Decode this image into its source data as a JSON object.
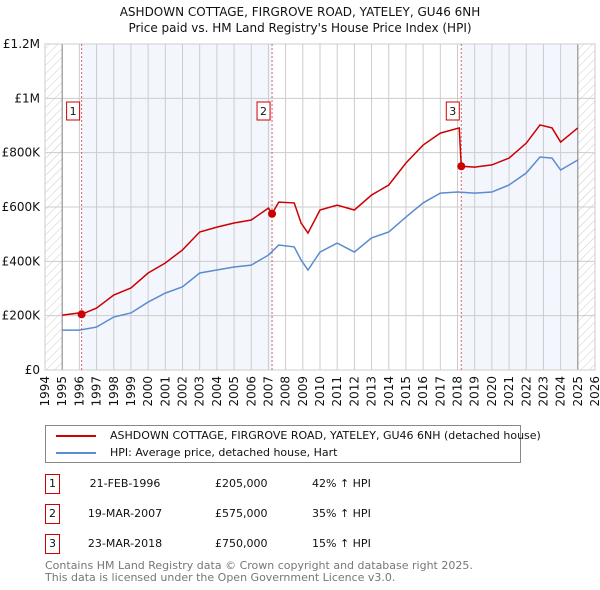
{
  "chart_data": {
    "type": "line",
    "title": "ASHDOWN COTTAGE, FIRGROVE ROAD, YATELEY, GU46 6NH",
    "subtitle": "Price paid vs. HM Land Registry's House Price Index (HPI)",
    "xlim": [
      1994,
      2026
    ],
    "ylim": [
      0,
      1200000
    ],
    "x_ticks": [
      "1994",
      "1995",
      "1996",
      "1997",
      "1998",
      "1999",
      "2000",
      "2001",
      "2002",
      "2003",
      "2004",
      "2005",
      "2006",
      "2007",
      "2008",
      "2009",
      "2010",
      "2011",
      "2012",
      "2013",
      "2014",
      "2015",
      "2016",
      "2017",
      "2018",
      "2019",
      "2020",
      "2021",
      "2022",
      "2023",
      "2024",
      "2025",
      "2026"
    ],
    "y_ticks": [
      {
        "v": 0,
        "label": "£0"
      },
      {
        "v": 200000,
        "label": "£200K"
      },
      {
        "v": 400000,
        "label": "£400K"
      },
      {
        "v": 600000,
        "label": "£600K"
      },
      {
        "v": 800000,
        "label": "£800K"
      },
      {
        "v": 1000000,
        "label": "£1M"
      },
      {
        "v": 1200000,
        "label": "£1.2M"
      }
    ],
    "grid": true,
    "data_range": [
      1995,
      2025
    ],
    "shaded_ranges": [
      [
        1996.13,
        2007.21
      ],
      [
        2018.22,
        2025
      ]
    ],
    "series": [
      {
        "name": "ASHDOWN COTTAGE, FIRGROVE ROAD, YATELEY, GU46 6NH (detached house)",
        "color": "#cc0000",
        "x": [
          1995,
          1996,
          1996.13,
          1997,
          1998,
          1999,
          2000,
          2001,
          2002,
          2003,
          2004,
          2005,
          2006,
          2007,
          2007.21,
          2007.6,
          2008.5,
          2008.9,
          2009.3,
          2010,
          2011,
          2012,
          2013,
          2014,
          2015,
          2016,
          2017,
          2018.1,
          2018.22,
          2019,
          2020,
          2021,
          2022,
          2022.8,
          2023.5,
          2024,
          2025
        ],
        "y": [
          202000,
          210000,
          205000,
          228000,
          276000,
          302000,
          357000,
          394000,
          442000,
          508000,
          526000,
          541000,
          552000,
          596000,
          575000,
          618000,
          615000,
          541000,
          504000,
          589000,
          607000,
          589000,
          644000,
          681000,
          762000,
          828000,
          872000,
          891000,
          750000,
          747000,
          755000,
          780000,
          835000,
          902000,
          891000,
          839000,
          891000
        ]
      },
      {
        "name": "HPI: Average price, detached house, Hart",
        "color": "#5b8bd0",
        "x": [
          1995,
          1996,
          1997,
          1998,
          1999,
          2000,
          2001,
          2002,
          2003,
          2004,
          2005,
          2006,
          2007,
          2007.6,
          2008.5,
          2008.9,
          2009.3,
          2010,
          2011,
          2012,
          2013,
          2014,
          2015,
          2016,
          2017,
          2018,
          2019,
          2020,
          2021,
          2022,
          2022.8,
          2023.5,
          2024,
          2025
        ],
        "y": [
          147000,
          147000,
          158000,
          195000,
          210000,
          250000,
          283000,
          306000,
          357000,
          368000,
          379000,
          386000,
          423000,
          460000,
          453000,
          405000,
          368000,
          434000,
          467000,
          434000,
          486000,
          508000,
          563000,
          615000,
          651000,
          655000,
          651000,
          655000,
          681000,
          725000,
          784000,
          780000,
          736000,
          773000
        ]
      }
    ],
    "sales": [
      {
        "n": "1",
        "date": "21-FEB-1996",
        "x": 1996.13,
        "price": "£205,000",
        "value": 205000,
        "hpi": "42% ↑ HPI"
      },
      {
        "n": "2",
        "date": "19-MAR-2007",
        "x": 2007.21,
        "price": "£575,000",
        "value": 575000,
        "hpi": "35% ↑ HPI"
      },
      {
        "n": "3",
        "date": "23-MAR-2018",
        "x": 2018.22,
        "price": "£750,000",
        "value": 750000,
        "hpi": "15% ↑ HPI"
      }
    ]
  },
  "legend": {
    "property": "ASHDOWN COTTAGE, FIRGROVE ROAD, YATELEY, GU46 6NH (detached house)",
    "hpi": "HPI: Average price, detached house, Hart"
  },
  "footer": {
    "line1": "Contains HM Land Registry data © Crown copyright and database right 2025.",
    "line2": "This data is licensed under the Open Government Licence v3.0."
  }
}
